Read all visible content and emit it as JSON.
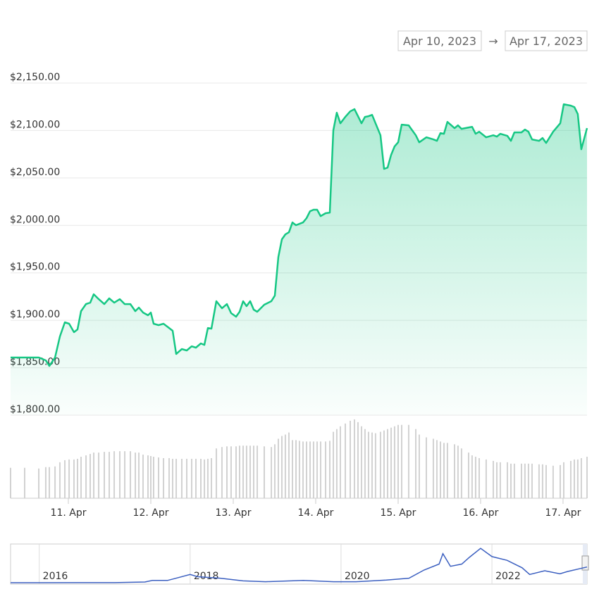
{
  "range": {
    "from": "Apr 10, 2023",
    "separator": "→",
    "to": "Apr 17, 2023"
  },
  "chart_data": {
    "type": "line",
    "x": [
      10.299,
      10.47,
      10.641,
      10.726,
      10.769,
      10.838,
      10.897,
      10.957,
      11.009,
      11.068,
      11.111,
      11.154,
      11.214,
      11.265,
      11.308,
      11.368,
      11.436,
      11.496,
      11.556,
      11.624,
      11.684,
      11.752,
      11.812,
      11.855,
      11.906,
      11.966,
      12.0,
      12.034,
      12.094,
      12.154,
      12.222,
      12.265,
      12.308,
      12.376,
      12.436,
      12.496,
      12.547,
      12.607,
      12.65,
      12.692,
      12.735,
      12.795,
      12.863,
      12.923,
      12.974,
      13.034,
      13.077,
      13.12,
      13.162,
      13.205,
      13.248,
      13.291,
      13.376,
      13.462,
      13.504,
      13.547,
      13.59,
      13.632,
      13.675,
      13.718,
      13.761,
      13.803,
      13.846,
      13.889,
      13.932,
      13.974,
      14.017,
      14.06,
      14.12,
      14.171,
      14.214,
      14.256,
      14.299,
      14.359,
      14.419,
      14.47,
      14.513,
      14.556,
      14.598,
      14.641,
      14.684,
      14.726,
      14.786,
      14.829,
      14.872,
      14.915,
      14.957,
      15.0,
      15.043,
      15.128,
      15.214,
      15.256,
      15.342,
      15.427,
      15.47,
      15.513,
      15.556,
      15.598,
      15.684,
      15.726,
      15.769,
      15.855,
      15.897,
      15.94,
      15.983,
      16.068,
      16.154,
      16.197,
      16.239,
      16.325,
      16.368,
      16.41,
      16.496,
      16.538,
      16.581,
      16.624,
      16.709,
      16.752,
      16.795,
      16.88,
      16.966,
      17.009,
      17.094,
      17.137,
      17.179,
      17.222,
      17.291
    ],
    "series": [
      {
        "color": "#16c784",
        "values": [
          1860.8,
          1860.8,
          1860.8,
          1857.8,
          1851.9,
          1860.8,
          1883.0,
          1897.9,
          1896.4,
          1887.5,
          1890.4,
          1909.7,
          1917.1,
          1918.6,
          1927.5,
          1922.3,
          1917.1,
          1923.1,
          1918.6,
          1922.3,
          1917.1,
          1917.1,
          1909.7,
          1913.4,
          1908.2,
          1905.3,
          1908.2,
          1896.4,
          1894.9,
          1896.4,
          1891.9,
          1889.0,
          1864.5,
          1869.7,
          1868.2,
          1872.6,
          1871.2,
          1875.6,
          1874.1,
          1891.9,
          1891.2,
          1920.1,
          1912.7,
          1917.1,
          1907.5,
          1903.8,
          1909.0,
          1920.1,
          1914.9,
          1920.1,
          1911.2,
          1909.0,
          1916.4,
          1920.1,
          1926.0,
          1966.8,
          1985.3,
          1990.5,
          1992.7,
          2003.1,
          2000.2,
          2001.6,
          2003.1,
          2007.6,
          2015.0,
          2016.5,
          2016.5,
          2009.8,
          2012.8,
          2013.5,
          2100.2,
          2118.8,
          2107.6,
          2114.3,
          2120.2,
          2122.5,
          2115.1,
          2107.6,
          2114.3,
          2115.1,
          2116.5,
          2107.6,
          2095.0,
          2059.5,
          2060.9,
          2074.3,
          2083.2,
          2087.6,
          2106.2,
          2105.4,
          2095.0,
          2087.6,
          2092.8,
          2090.6,
          2089.1,
          2097.3,
          2096.5,
          2109.1,
          2102.5,
          2105.4,
          2101.7,
          2103.2,
          2103.9,
          2096.5,
          2098.7,
          2092.8,
          2095.0,
          2093.6,
          2096.5,
          2094.3,
          2089.1,
          2098.0,
          2098.0,
          2101.0,
          2098.7,
          2090.6,
          2089.1,
          2092.1,
          2086.9,
          2098.7,
          2107.6,
          2127.7,
          2126.2,
          2124.7,
          2117.3,
          2080.2,
          2102.5
        ]
      }
    ],
    "volume": {
      "color": "#d2d2d2",
      "ylim": [
        0,
        120
      ],
      "values": [
        44,
        44,
        43,
        45,
        45,
        46,
        52,
        55,
        56,
        56,
        57,
        60,
        62,
        64,
        66,
        66,
        67,
        67,
        68,
        68,
        68,
        68,
        66,
        66,
        63,
        62,
        61,
        60,
        59,
        58,
        58,
        57,
        57,
        57,
        57,
        57,
        57,
        57,
        56,
        57,
        58,
        72,
        74,
        75,
        75,
        75,
        76,
        76,
        76,
        76,
        76,
        76,
        75,
        74,
        78,
        86,
        90,
        92,
        95,
        84,
        84,
        83,
        82,
        82,
        82,
        82,
        82,
        82,
        82,
        83,
        96,
        100,
        104,
        108,
        112,
        114,
        110,
        104,
        100,
        96,
        95,
        94,
        96,
        98,
        100,
        102,
        104,
        106,
        106,
        106,
        100,
        92,
        88,
        86,
        84,
        82,
        80,
        80,
        78,
        76,
        72,
        66,
        62,
        60,
        58,
        56,
        54,
        52,
        52,
        52,
        50,
        50,
        50,
        50,
        50,
        50,
        49,
        49,
        48,
        47,
        48,
        52,
        54,
        56,
        56,
        58,
        60
      ]
    },
    "xlim": [
      10.299,
      17.291
    ],
    "xticks": [
      {
        "value": 11,
        "label": "11. Apr"
      },
      {
        "value": 12,
        "label": "12. Apr"
      },
      {
        "value": 13,
        "label": "13. Apr"
      },
      {
        "value": 14,
        "label": "14. Apr"
      },
      {
        "value": 15,
        "label": "15. Apr"
      },
      {
        "value": 16,
        "label": "16. Apr"
      },
      {
        "value": 17,
        "label": "17. Apr"
      }
    ],
    "ylim": [
      1800,
      2150
    ],
    "yticks": [
      {
        "value": 1800,
        "label": "$1,800.00"
      },
      {
        "value": 1850,
        "label": "$1,850.00"
      },
      {
        "value": 1900,
        "label": "$1,900.00"
      },
      {
        "value": 1950,
        "label": "$1,950.00"
      },
      {
        "value": 2000,
        "label": "$2,000.00"
      },
      {
        "value": 2050,
        "label": "$2,050.00"
      },
      {
        "value": 2100,
        "label": "$2,100.00"
      },
      {
        "value": 2150,
        "label": "$2,150.00"
      }
    ],
    "grid": true,
    "navigator": {
      "color": "#3b5fc0",
      "x": [
        2015.62,
        2016.0,
        2016.5,
        2017.0,
        2017.4,
        2017.5,
        2017.7,
        2018.0,
        2018.1,
        2018.4,
        2018.7,
        2019.0,
        2019.5,
        2019.9,
        2020.2,
        2020.6,
        2020.9,
        2021.1,
        2021.3,
        2021.35,
        2021.45,
        2021.6,
        2021.7,
        2021.85,
        2022.0,
        2022.2,
        2022.4,
        2022.5,
        2022.7,
        2022.9,
        2023.0,
        2023.26
      ],
      "values": [
        1,
        1,
        12,
        8,
        90,
        300,
        300,
        1100,
        800,
        600,
        250,
        130,
        300,
        130,
        130,
        350,
        600,
        1700,
        2500,
        3900,
        2200,
        2500,
        3400,
        4600,
        3500,
        3000,
        2000,
        1100,
        1600,
        1200,
        1500,
        2100
      ],
      "xlim": [
        2015.62,
        2023.26
      ],
      "ylim": [
        0,
        5000
      ],
      "xticks": [
        2016,
        2018,
        2020,
        2022
      ]
    }
  }
}
